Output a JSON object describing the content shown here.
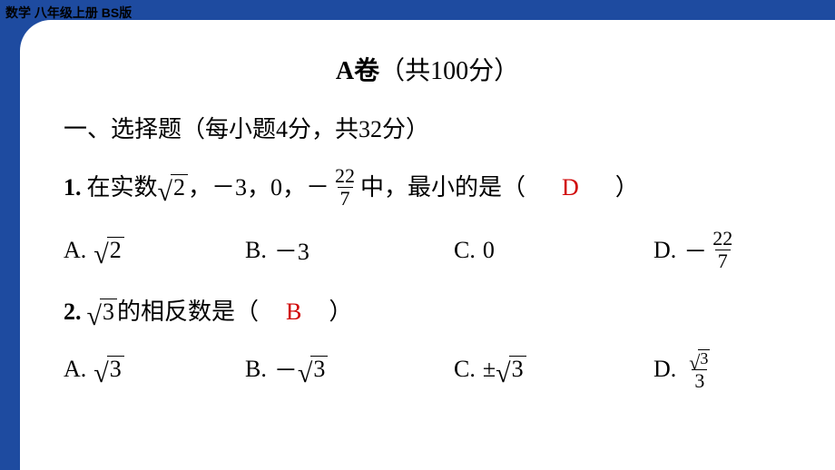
{
  "header": "数学 八年级上册 BS版",
  "paper": {
    "title_bold": "A卷",
    "title_rest": "（共100分）"
  },
  "section1": {
    "label": "一、选择题",
    "note": "（每小题4分，共32分）"
  },
  "q1": {
    "num": "1.",
    "text_a": "在实数",
    "sqrt_body": "2",
    "text_b": "，－3，0，－",
    "frac_num": "22",
    "frac_den": "7",
    "text_c": "中，最小的是（",
    "answer": "D",
    "text_d": "）",
    "options": {
      "A": {
        "label": "A.",
        "sqrt": "2"
      },
      "B": {
        "label": "B.",
        "text": "－3"
      },
      "C": {
        "label": "C.",
        "text": "0"
      },
      "D": {
        "label": "D.",
        "sign": "－",
        "frac_num": "22",
        "frac_den": "7"
      }
    }
  },
  "q2": {
    "num": "2.",
    "sqrt_body": "3",
    "text_a": "的相反数是（",
    "answer": "B",
    "text_b": "）",
    "options": {
      "A": {
        "label": "A.",
        "sqrt": "3"
      },
      "B": {
        "label": "B.",
        "sign": "－",
        "sqrt": "3"
      },
      "C": {
        "label": "C.",
        "sign": "±",
        "sqrt": "3"
      },
      "D": {
        "label": "D.",
        "frac_sqrt": "3",
        "frac_den": "3"
      }
    }
  },
  "colors": {
    "page_bg": "#1e4ba0",
    "card_bg": "#ffffff",
    "text": "#000000",
    "answer": "#d00000"
  },
  "layout": {
    "card_radius_tl": 34,
    "font_size_body": 26,
    "font_size_title": 28
  }
}
